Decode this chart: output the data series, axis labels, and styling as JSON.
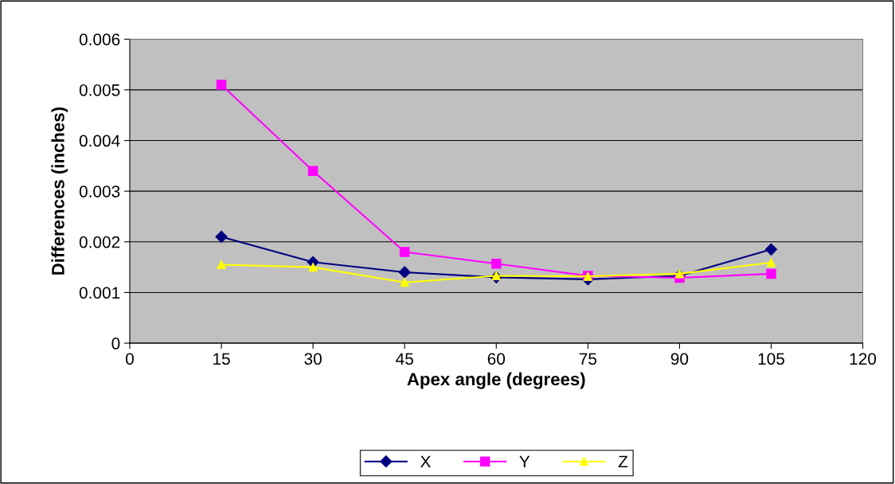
{
  "chart_data": {
    "type": "line",
    "xlabel": "Apex angle (degrees)",
    "ylabel": "Differences (inches)",
    "x": [
      15,
      30,
      45,
      60,
      75,
      90,
      105
    ],
    "series": [
      {
        "name": "X",
        "color": "#000080",
        "marker": "diamond",
        "values": [
          0.0021,
          0.0016,
          0.0014,
          0.0013,
          0.00126,
          0.00133,
          0.00185
        ]
      },
      {
        "name": "Y",
        "color": "#ff00ff",
        "marker": "square",
        "values": [
          0.0051,
          0.0034,
          0.0018,
          0.00157,
          0.00133,
          0.00129,
          0.00137
        ]
      },
      {
        "name": "Z",
        "color": "#ffff00",
        "marker": "triangle",
        "values": [
          0.00155,
          0.0015,
          0.0012,
          0.00133,
          0.00132,
          0.00137,
          0.00159
        ]
      }
    ],
    "xlim": [
      0,
      120
    ],
    "xticks": [
      0,
      15,
      30,
      45,
      60,
      75,
      90,
      105,
      120
    ],
    "ylim": [
      0,
      0.006
    ],
    "yticks": [
      0,
      0.001,
      0.002,
      0.003,
      0.004,
      0.005,
      0.006
    ],
    "grid": "y",
    "legend": "bottom",
    "line_style": "solid"
  }
}
